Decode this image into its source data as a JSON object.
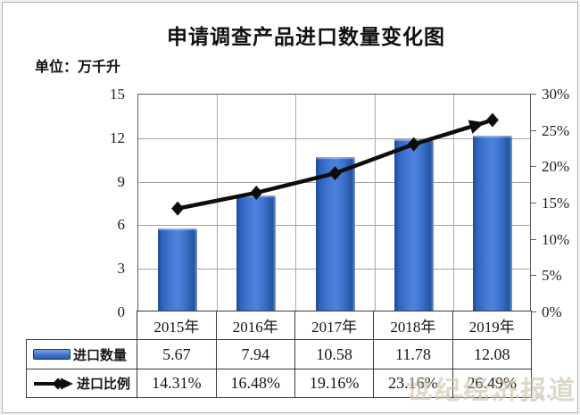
{
  "title": "申请调查产品进口数量变化图",
  "unit_label": "单位：万千升",
  "watermark": {
    "text": "世纪经济报道"
  },
  "colors": {
    "bar_main": "#3b6ec8",
    "bar_edge_dark": "#1c4593",
    "line": "#0d0d0d",
    "grid": "#a3a3a3",
    "plot_border": "#5f5f5f",
    "table_border": "#3a3a3a",
    "watermark": "#cdc1aa"
  },
  "chart_data": {
    "type": "bar",
    "subtype": "combo-bar-line",
    "title": "申请调查产品进口数量变化图",
    "categories": [
      "2015年",
      "2016年",
      "2017年",
      "2018年",
      "2019年"
    ],
    "series": [
      {
        "name": "进口数量",
        "type": "bar",
        "axis": "left",
        "values": [
          5.67,
          7.94,
          10.58,
          11.78,
          12.08
        ],
        "labels": [
          "5.67",
          "7.94",
          "10.58",
          "11.78",
          "12.08"
        ],
        "color": "#3b6ec8"
      },
      {
        "name": "进口比例",
        "type": "line",
        "axis": "right",
        "values": [
          14.31,
          16.48,
          19.16,
          23.16,
          26.49
        ],
        "labels": [
          "14.31%",
          "16.48%",
          "19.16%",
          "23.16%",
          "26.49%"
        ],
        "color": "#0d0d0d",
        "marker": "diamond",
        "end_marker": "arrow"
      }
    ],
    "left_axis": {
      "min": 0,
      "max": 15,
      "step": 3,
      "tick_labels": [
        "15",
        "12",
        "9",
        "6",
        "3",
        "0"
      ]
    },
    "right_axis": {
      "min": 0,
      "max": 30,
      "step": 5,
      "tick_labels": [
        "30%",
        "25%",
        "20%",
        "15%",
        "10%",
        "5%",
        "0%"
      ]
    },
    "grid": {
      "horizontal": true,
      "vertical": true
    },
    "legend_position": "table-left-column"
  }
}
